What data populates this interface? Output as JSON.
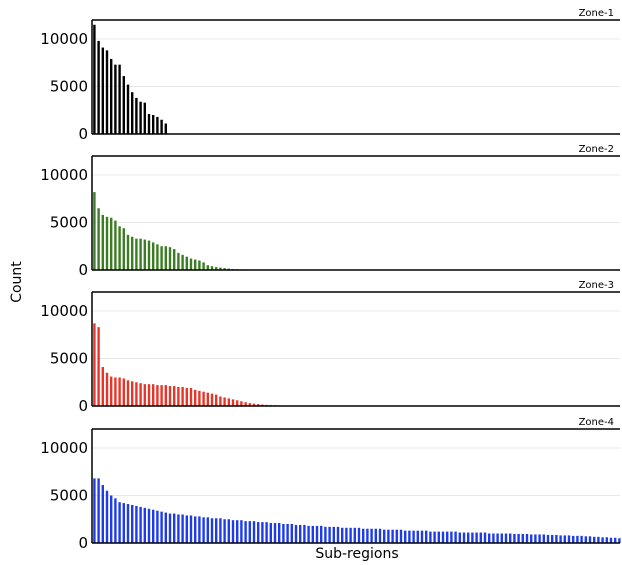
{
  "chart_data": {
    "type": "bar",
    "ylabel": "Count",
    "xlabel": "Sub-regions",
    "ylim": [
      0,
      12000
    ],
    "yticks": [
      0,
      5000,
      10000
    ],
    "grid": "horizontal",
    "panels": [
      {
        "name": "Zone-1",
        "color": "#000000",
        "values": [
          11500,
          9800,
          9100,
          8800,
          7900,
          7300,
          7300,
          6100,
          5200,
          4400,
          3800,
          3400,
          3300,
          2100,
          2000,
          1800,
          1500,
          1100
        ]
      },
      {
        "name": "Zone-2",
        "color": "#3a7d22",
        "values": [
          8200,
          6500,
          5800,
          5600,
          5500,
          5200,
          4600,
          4400,
          3700,
          3500,
          3300,
          3300,
          3200,
          3100,
          2900,
          2700,
          2500,
          2500,
          2400,
          2200,
          1800,
          1600,
          1400,
          1200,
          1100,
          1000,
          800,
          500,
          400,
          300,
          250,
          200,
          150,
          100,
          80,
          60,
          40
        ]
      },
      {
        "name": "Zone-3",
        "color": "#e8352a",
        "values": [
          8700,
          8300,
          4100,
          3500,
          3100,
          3000,
          3000,
          2900,
          2700,
          2600,
          2500,
          2400,
          2300,
          2300,
          2300,
          2200,
          2200,
          2200,
          2100,
          2100,
          2000,
          2000,
          1900,
          1900,
          1700,
          1600,
          1500,
          1400,
          1300,
          1200,
          1000,
          900,
          800,
          700,
          600,
          500,
          400,
          300,
          250,
          200,
          150,
          120,
          100,
          80,
          60,
          50,
          40,
          30,
          20,
          10
        ]
      },
      {
        "name": "Zone-4",
        "color": "#1d3be8",
        "values": [
          6800,
          6800,
          6100,
          5500,
          5000,
          4700,
          4300,
          4200,
          4100,
          4000,
          3900,
          3800,
          3700,
          3600,
          3500,
          3400,
          3300,
          3200,
          3100,
          3100,
          3000,
          3000,
          2900,
          2900,
          2800,
          2800,
          2700,
          2700,
          2600,
          2600,
          2600,
          2500,
          2500,
          2400,
          2400,
          2400,
          2300,
          2300,
          2300,
          2200,
          2200,
          2200,
          2100,
          2100,
          2100,
          2000,
          2000,
          2000,
          1900,
          1900,
          1900,
          1800,
          1800,
          1800,
          1800,
          1700,
          1700,
          1700,
          1700,
          1600,
          1600,
          1600,
          1600,
          1600,
          1500,
          1500,
          1500,
          1500,
          1500,
          1400,
          1400,
          1400,
          1400,
          1400,
          1300,
          1300,
          1300,
          1300,
          1300,
          1300,
          1200,
          1200,
          1200,
          1200,
          1200,
          1200,
          1200,
          1100,
          1100,
          1100,
          1100,
          1100,
          1100,
          1100,
          1000,
          1000,
          1000,
          1000,
          1000,
          1000,
          950,
          950,
          950,
          950,
          900,
          900,
          900,
          900,
          850,
          850,
          850,
          800,
          800,
          800,
          750,
          750,
          750,
          700,
          700,
          650,
          650,
          600,
          600,
          550,
          550,
          500,
          450,
          400,
          350,
          300
        ]
      }
    ]
  }
}
